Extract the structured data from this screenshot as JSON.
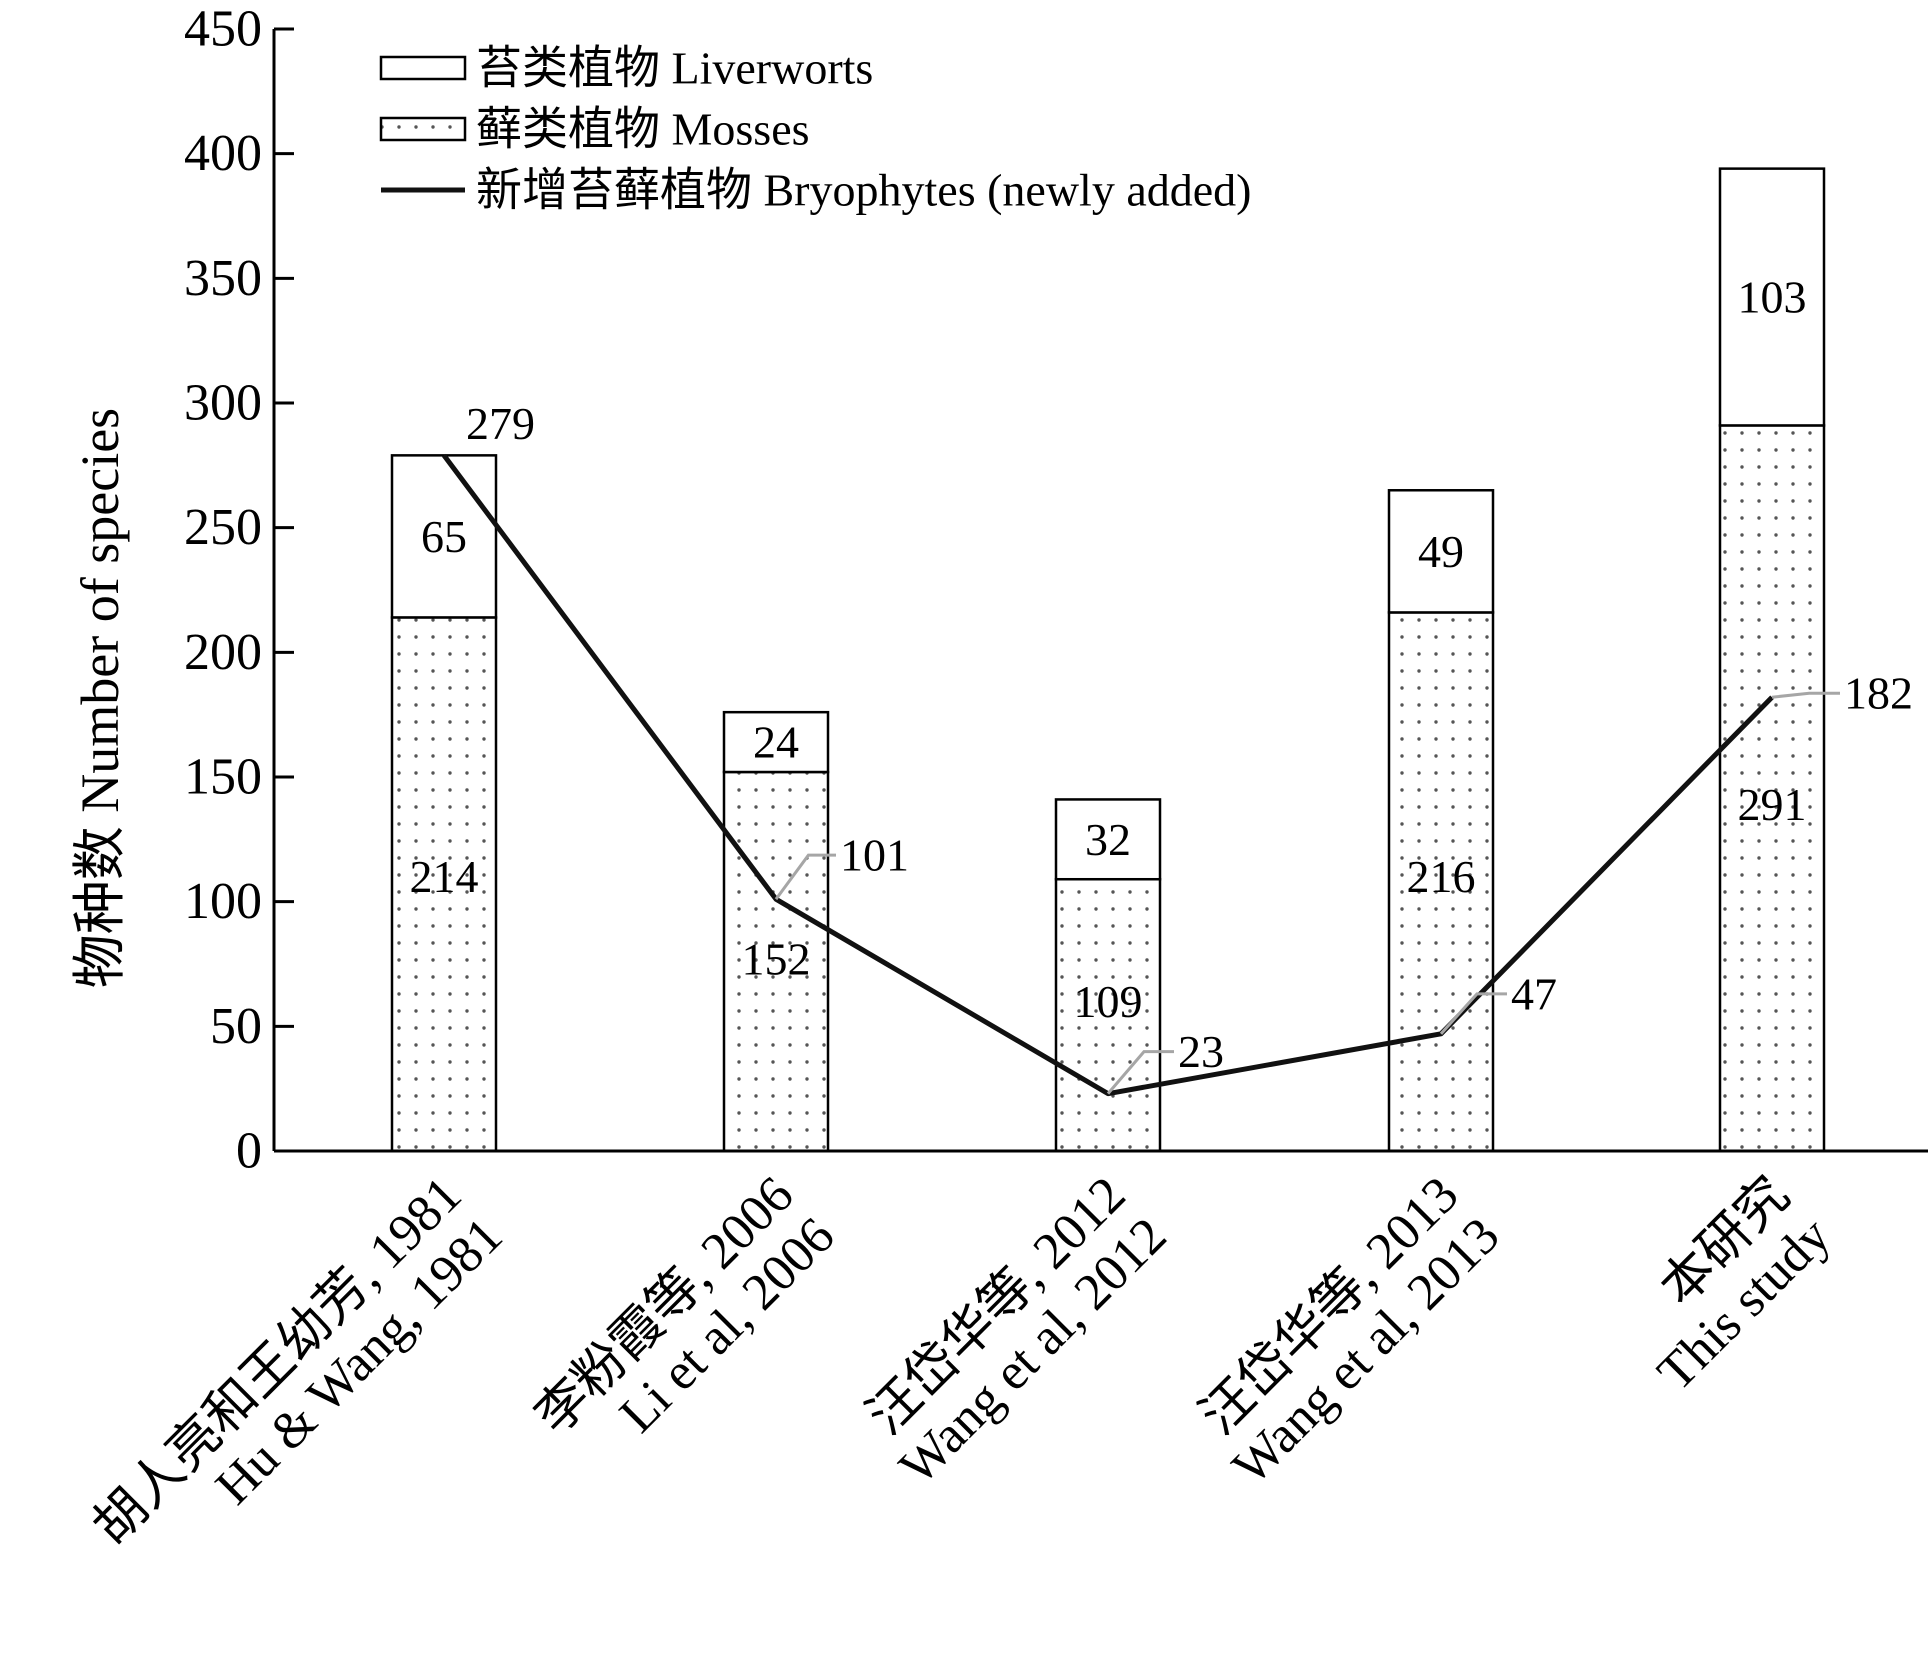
{
  "chart_data": {
    "type": "bar",
    "stacked": true,
    "ylabel": "物种数 Number of species",
    "xlabel": "",
    "ylim": [
      0,
      450
    ],
    "yticks": [
      0,
      50,
      100,
      150,
      200,
      250,
      300,
      350,
      400,
      450
    ],
    "categories": [
      {
        "line1": "胡人亮和王幼芳, 1981",
        "line2": "Hu & Wang, 1981"
      },
      {
        "line1": "李粉霞等, 2006",
        "line2": "Li et al, 2006"
      },
      {
        "line1": "汪岱华等, 2012",
        "line2": "Wang et al, 2012"
      },
      {
        "line1": "汪岱华等, 2013",
        "line2": "Wang et al, 2013"
      },
      {
        "line1": "本研究",
        "line2": "This study"
      }
    ],
    "series": [
      {
        "name": "藓类植物 Mosses",
        "kind": "bar",
        "pattern": "dotted",
        "values": [
          214,
          152,
          109,
          216,
          291
        ]
      },
      {
        "name": "苔类植物 Liverworts",
        "kind": "bar",
        "pattern": "blank",
        "values": [
          65,
          24,
          32,
          49,
          103
        ]
      },
      {
        "name": "新增苔藓植物 Bryophytes (newly added)",
        "kind": "line",
        "values": [
          279,
          101,
          23,
          47,
          182
        ]
      }
    ],
    "legend_position": "top-left",
    "grid": false,
    "colors": {
      "line": "#111111",
      "leader": "#a6a6a6",
      "dots": "#555555",
      "frame": "#000000"
    }
  }
}
